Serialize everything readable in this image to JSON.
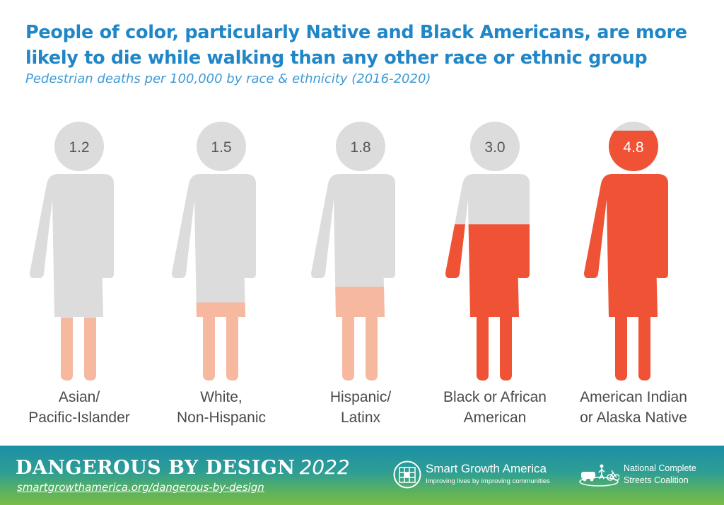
{
  "chart_data": {
    "type": "pictograph",
    "title": "People of color, particularly Native and Black Americans, are more likely to die while walking than any other race or ethnic group",
    "subtitle": "Pedestrian deaths per 100,000 by race & ethnicity (2016-2020)",
    "ylim": [
      0,
      5
    ],
    "categories": [
      {
        "label_lines": [
          "Asian/",
          "Pacific-Islander"
        ],
        "display": "1.2",
        "value": 1.2,
        "fill_color": "#f7b8a0",
        "fill_text_color": "#555555"
      },
      {
        "label_lines": [
          "White,",
          "Non-Hispanic"
        ],
        "display": "1.5",
        "value": 1.5,
        "fill_color": "#f7b8a0",
        "fill_text_color": "#555555"
      },
      {
        "label_lines": [
          "Hispanic/",
          "Latinx"
        ],
        "display": "1.8",
        "value": 1.8,
        "fill_color": "#f7b8a0",
        "fill_text_color": "#555555"
      },
      {
        "label_lines": [
          "Black or African",
          "American"
        ],
        "display": "3.0",
        "value": 3.0,
        "fill_color": "#ef5234",
        "fill_text_color": "#555555"
      },
      {
        "label_lines": [
          "American Indian",
          "or Alaska Native"
        ],
        "display": "4.8",
        "value": 4.8,
        "fill_color": "#ef5234",
        "fill_text_color": "#ffffff"
      }
    ],
    "empty_color": "#dcdcdd"
  },
  "footer": {
    "brand_main": "DANGEROUS BY DESIGN",
    "brand_year": "2022",
    "url": "smartgrowthamerica.org/dangerous-by-design",
    "sga_name": "Smart Growth America",
    "sga_tagline": "Improving lives by improving communities",
    "ncsc_line1": "National Complete",
    "ncsc_line2": "Streets Coalition"
  }
}
